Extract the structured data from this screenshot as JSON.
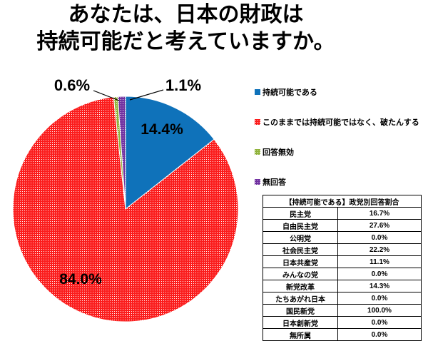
{
  "title": {
    "line1": "あなたは、日本の財政は",
    "line2": "持続可能だと考えていますか。"
  },
  "chart_data": {
    "type": "pie",
    "title": "あなたは、日本の財政は持続可能だと考えていますか。",
    "legend_position": "right",
    "slices": [
      {
        "name": "持続可能である",
        "value": 14.4,
        "label": "14.4%",
        "color": "#0F72BA",
        "dotted": false
      },
      {
        "name": "このままでは持続可能ではなく、破たんする",
        "value": 84.0,
        "label": "84.0%",
        "color": "#FB1D1D",
        "dotted": true
      },
      {
        "name": "回答無効",
        "value": 0.6,
        "label": "0.6%",
        "color": "#8FB23A",
        "dotted": true
      },
      {
        "name": "無回答",
        "value": 1.1,
        "label": "1.1%",
        "color": "#7030A0",
        "dotted": true
      }
    ]
  },
  "table": {
    "header": "【持続可能である】政党別回答割合",
    "rows": [
      {
        "party": "民主党",
        "value": "16.7%"
      },
      {
        "party": "自由民主党",
        "value": "27.6%"
      },
      {
        "party": "公明党",
        "value": "0.0%"
      },
      {
        "party": "社会民主党",
        "value": "22.2%"
      },
      {
        "party": "日本共産党",
        "value": "11.1%"
      },
      {
        "party": "みんなの党",
        "value": "0.0%"
      },
      {
        "party": "新党改革",
        "value": "14.3%"
      },
      {
        "party": "たちあがれ日本",
        "value": "0.0%"
      },
      {
        "party": "国民新党",
        "value": "100.0%"
      },
      {
        "party": "日本創新党",
        "value": "0.0%"
      },
      {
        "party": "無所属",
        "value": "0.0%"
      }
    ]
  }
}
